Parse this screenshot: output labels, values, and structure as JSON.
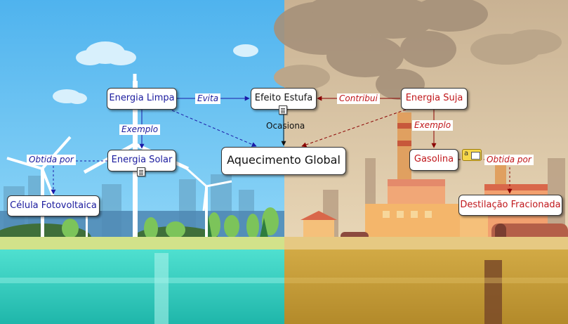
{
  "nodes": {
    "energia_limpa": "Energia Limpa",
    "efeito_estufa": "Efeito Estufa",
    "energia_suja": "Energia Suja",
    "energia_solar": "Energia Solar",
    "aquecimento_global": "Aquecimento Global",
    "gasolina": "Gasolina",
    "celula_fotovoltaica": "Célula Fotovoltaica",
    "destilacao_fracionada": "Destilação Fracionada"
  },
  "links": {
    "evita": "Evita",
    "contribui": "Contribui",
    "exemplo_limpa": "Exemplo",
    "exemplo_suja": "Exemplo",
    "ocasiona": "Ocasiona",
    "obtida_por_solar": "Obtida por",
    "obtida_por_gasolina": "Obtida por"
  },
  "colors": {
    "clean_link": "#1a1aa8",
    "dirty_link": "#8b0000",
    "sky": "#5bbcf0",
    "smog": "#cfb99a",
    "clean_water": "#3fd6c4",
    "dirty_water": "#c9a23c"
  },
  "icons": {
    "resource": "document-icon",
    "note": "note-icon"
  }
}
